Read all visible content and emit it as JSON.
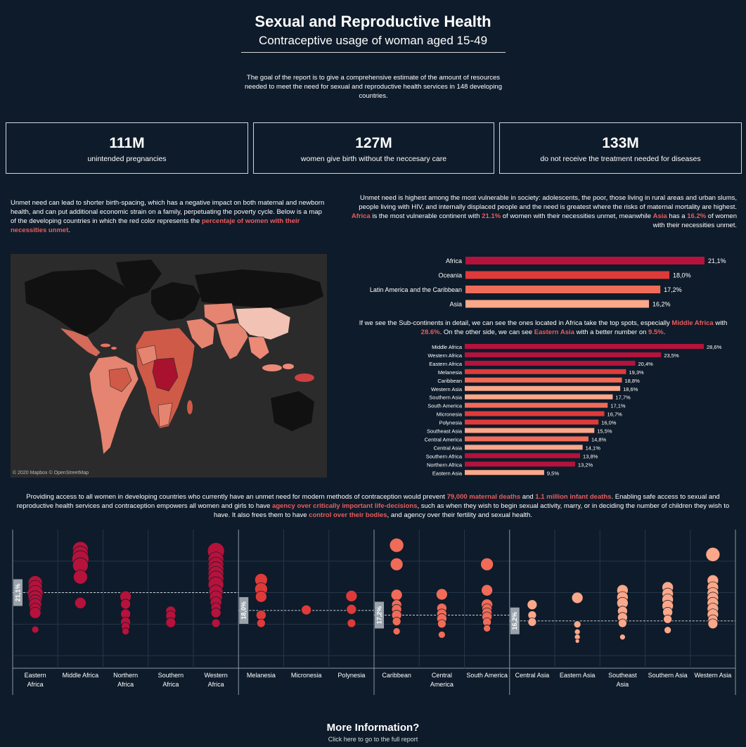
{
  "header": {
    "title": "Sexual and Reproductive Health",
    "subtitle": "Contraceptive usage of woman aged 15-49",
    "intro": "The goal of the report is to give a comprehensive estimate of the amount of resources needed to meet the need for sexual and reproductive health services in 148 developing countries."
  },
  "kpis": [
    {
      "value": "111M",
      "label": "unintended pregnancies"
    },
    {
      "value": "127M",
      "label": "women give birth without the neccesary care"
    },
    {
      "value": "133M",
      "label": "do not receive the treatment needed for diseases"
    }
  ],
  "left_text": {
    "body": "Unmet need can lead to shorter birth-spacing, which has a negative impact on both maternal and newborn health, and can put additional economic strain on a family, perpetuating the poverty cycle. Below is a map of the developing countries in which the red color represents the ",
    "highlight": "percentaje of women with their necessities unmet",
    "end": "."
  },
  "right_text": {
    "p1": "Unmet need is highest among the most vulnerable in society: adolescents, the poor, those living in rural areas and urban slums, people living with HIV, and internally displaced people and the need is greatest where the risks of maternal mortality are highest.",
    "h1": "Africa",
    "t1": " is the most vulnerable continent with ",
    "h2": "21.1%",
    "t2": " of women with their necessities unmet, meanwhile ",
    "h3": "Asia",
    "t3": " has a ",
    "h4": "16.2%",
    "t4": " of women with their necessities unmet."
  },
  "map": {
    "credit": "© 2020 Mapbox © OpenStreetMap"
  },
  "sub_text": {
    "t1": "If we see the Sub-continents in detail, we can see the ones located in Africa take the top spots, especially ",
    "h1": "Middle Africa",
    "t2": " with ",
    "h2": "28.6%",
    "t3": ". On the other side, we can see ",
    "h3": "Eastern Asia",
    "t4": " with a better number on ",
    "h4": "9.5%",
    "t5": "."
  },
  "para2": {
    "t1": "Providing access to all women in developing countries who currently have an unmet need for modern methods of contraception would prevent ",
    "h1": "79,000 maternal deaths",
    "t2": " and ",
    "h2": "1.1 million infant deaths",
    "t3": ". Enabling safe access to sexual and reproductive health services and contraception empowers all women and girls to have ",
    "h3": "agency over critically important life-decisions",
    "t4": ", such as when they wish to begin sexual activity, marry, or in deciding the number of children they wish to have. It also frees them to have ",
    "h4": "control over their bodies",
    "t5": ", and agency over their fertility and sexual health."
  },
  "more_info": {
    "title": "More Information?",
    "link": "Click here to go to the full report"
  },
  "colors": {
    "background": "#0e1b2a",
    "highlight": "#e85d5d",
    "dark_red": "#b5123c",
    "red": "#d63a3a",
    "salmon": "#f2735c",
    "peach": "#fba78a"
  },
  "chart_data": [
    {
      "type": "bar",
      "orientation": "horizontal",
      "categories": [
        "Africa",
        "Oceania",
        "Latin America and the Caribbean",
        "Asia"
      ],
      "values": [
        21.1,
        18.0,
        17.2,
        16.2
      ],
      "value_labels": [
        "21,1%",
        "18,0%",
        "17,2%",
        "16,2%"
      ],
      "colors": [
        "#b5123c",
        "#de3a3a",
        "#f06b58",
        "#fba78a"
      ],
      "xlim": [
        0,
        21.1
      ]
    },
    {
      "type": "bar",
      "orientation": "horizontal",
      "categories": [
        "Middle Africa",
        "Western Africa",
        "Eastern Africa",
        "Melanesia",
        "Caribbean",
        "Western Asia",
        "Southern Asia",
        "South America",
        "Micronesia",
        "Polynesia",
        "Southeast Asia",
        "Central America",
        "Central Asia",
        "Southern Africa",
        "Northern Africa",
        "Eastern Asia"
      ],
      "values": [
        28.6,
        23.5,
        20.4,
        19.3,
        18.8,
        18.6,
        17.7,
        17.1,
        16.7,
        16.0,
        15.5,
        14.8,
        14.1,
        13.8,
        13.2,
        9.5
      ],
      "value_labels": [
        "28,6%",
        "23,5%",
        "20,4%",
        "19,3%",
        "18,8%",
        "18,6%",
        "17,7%",
        "17,1%",
        "16,7%",
        "16,0%",
        "15,5%",
        "14,8%",
        "14,1%",
        "13,8%",
        "13,2%",
        "9,5%"
      ],
      "colors": [
        "#b5123c",
        "#b5123c",
        "#b5123c",
        "#de3a3a",
        "#f06b58",
        "#fba78a",
        "#fba78a",
        "#f06b58",
        "#de3a3a",
        "#de3a3a",
        "#fba78a",
        "#f06b58",
        "#fba78a",
        "#b5123c",
        "#b5123c",
        "#fba78a"
      ],
      "xlim": [
        0,
        28.6
      ]
    },
    {
      "type": "scatter",
      "panels": [
        {
          "name": "Africa",
          "average": 21.1,
          "average_label": "21,1%",
          "color": "#b5123c",
          "groups": [
            {
              "label": "Eastern Africa",
              "points": [
                {
                  "y": 22.8,
                  "r": 10
                },
                {
                  "y": 22.0,
                  "r": 10
                },
                {
                  "y": 21.0,
                  "r": 11
                },
                {
                  "y": 20.2,
                  "r": 10
                },
                {
                  "y": 19.6,
                  "r": 9
                },
                {
                  "y": 19.0,
                  "r": 9
                },
                {
                  "y": 18.3,
                  "r": 8
                },
                {
                  "y": 17.6,
                  "r": 8
                },
                {
                  "y": 14.7,
                  "r": 5
                }
              ]
            },
            {
              "label": "Middle Africa",
              "points": [
                {
                  "y": 28.6,
                  "r": 11
                },
                {
                  "y": 27.8,
                  "r": 11
                },
                {
                  "y": 26.9,
                  "r": 12
                },
                {
                  "y": 25.8,
                  "r": 11
                },
                {
                  "y": 23.8,
                  "r": 10
                },
                {
                  "y": 19.3,
                  "r": 8
                }
              ]
            },
            {
              "label": "Northern Africa",
              "points": [
                {
                  "y": 20.4,
                  "r": 8
                },
                {
                  "y": 19.1,
                  "r": 7
                },
                {
                  "y": 17.4,
                  "r": 7
                },
                {
                  "y": 16.0,
                  "r": 7
                },
                {
                  "y": 15.2,
                  "r": 6
                },
                {
                  "y": 14.4,
                  "r": 5
                }
              ]
            },
            {
              "label": "Southern Africa",
              "points": [
                {
                  "y": 17.9,
                  "r": 7
                },
                {
                  "y": 17.1,
                  "r": 7
                },
                {
                  "y": 15.9,
                  "r": 7
                }
              ]
            },
            {
              "label": "Western Africa",
              "points": [
                {
                  "y": 28.3,
                  "r": 12
                },
                {
                  "y": 26.8,
                  "r": 11
                },
                {
                  "y": 25.9,
                  "r": 11
                },
                {
                  "y": 25.1,
                  "r": 11
                },
                {
                  "y": 24.3,
                  "r": 11
                },
                {
                  "y": 23.5,
                  "r": 11
                },
                {
                  "y": 22.5,
                  "r": 11
                },
                {
                  "y": 21.2,
                  "r": 10
                },
                {
                  "y": 20.3,
                  "r": 9
                },
                {
                  "y": 19.4,
                  "r": 8
                },
                {
                  "y": 18.5,
                  "r": 7
                },
                {
                  "y": 17.6,
                  "r": 7
                },
                {
                  "y": 15.8,
                  "r": 6
                }
              ]
            }
          ]
        },
        {
          "name": "Oceania",
          "average": 18.0,
          "average_label": "18,0%",
          "color": "#de3a3a",
          "groups": [
            {
              "label": "Melanesia",
              "points": [
                {
                  "y": 23.3,
                  "r": 9
                },
                {
                  "y": 21.7,
                  "r": 9
                },
                {
                  "y": 20.4,
                  "r": 8
                },
                {
                  "y": 17.2,
                  "r": 7
                },
                {
                  "y": 15.8,
                  "r": 6
                }
              ]
            },
            {
              "label": "Micronesia",
              "points": [
                {
                  "y": 18.1,
                  "r": 7
                }
              ]
            },
            {
              "label": "Polynesia",
              "points": [
                {
                  "y": 20.5,
                  "r": 8
                },
                {
                  "y": 18.2,
                  "r": 7
                },
                {
                  "y": 15.8,
                  "r": 6
                }
              ]
            }
          ]
        },
        {
          "name": "Latin America and the Caribbean",
          "average": 17.2,
          "average_label": "17,2%",
          "color": "#f06b58",
          "groups": [
            {
              "label": "Caribbean",
              "points": [
                {
                  "y": 29.3,
                  "r": 10
                },
                {
                  "y": 26.0,
                  "r": 9
                },
                {
                  "y": 20.7,
                  "r": 8
                },
                {
                  "y": 19.0,
                  "r": 7
                },
                {
                  "y": 18.2,
                  "r": 7
                },
                {
                  "y": 17.2,
                  "r": 7
                },
                {
                  "y": 16.1,
                  "r": 6
                },
                {
                  "y": 14.4,
                  "r": 5
                }
              ]
            },
            {
              "label": "Central America",
              "points": [
                {
                  "y": 20.8,
                  "r": 8
                },
                {
                  "y": 18.4,
                  "r": 7
                },
                {
                  "y": 17.4,
                  "r": 7
                },
                {
                  "y": 16.6,
                  "r": 7
                },
                {
                  "y": 15.7,
                  "r": 6
                },
                {
                  "y": 13.8,
                  "r": 5
                }
              ]
            },
            {
              "label": "South America",
              "points": [
                {
                  "y": 26.0,
                  "r": 9
                },
                {
                  "y": 21.5,
                  "r": 8
                },
                {
                  "y": 19.0,
                  "r": 8
                },
                {
                  "y": 18.3,
                  "r": 7
                },
                {
                  "y": 17.6,
                  "r": 7
                },
                {
                  "y": 16.9,
                  "r": 7
                },
                {
                  "y": 16.0,
                  "r": 6
                },
                {
                  "y": 14.9,
                  "r": 5
                }
              ]
            }
          ]
        },
        {
          "name": "Asia",
          "average": 16.2,
          "average_label": "16,2%",
          "color": "#fba78a",
          "groups": [
            {
              "label": "Central Asia",
              "points": [
                {
                  "y": 19.0,
                  "r": 7
                },
                {
                  "y": 17.2,
                  "r": 6
                },
                {
                  "y": 16.0,
                  "r": 6
                }
              ]
            },
            {
              "label": "Eastern Asia",
              "points": [
                {
                  "y": 20.2,
                  "r": 8
                },
                {
                  "y": 15.6,
                  "r": 5
                },
                {
                  "y": 14.3,
                  "r": 4
                },
                {
                  "y": 13.4,
                  "r": 4
                },
                {
                  "y": 12.7,
                  "r": 3
                }
              ]
            },
            {
              "label": "Southeast Asia",
              "points": [
                {
                  "y": 21.5,
                  "r": 8
                },
                {
                  "y": 20.3,
                  "r": 8
                },
                {
                  "y": 19.3,
                  "r": 8
                },
                {
                  "y": 17.9,
                  "r": 7
                },
                {
                  "y": 16.8,
                  "r": 7
                },
                {
                  "y": 15.8,
                  "r": 6
                },
                {
                  "y": 13.4,
                  "r": 4
                }
              ]
            },
            {
              "label": "Southern Asia",
              "points": [
                {
                  "y": 22.0,
                  "r": 8
                },
                {
                  "y": 20.9,
                  "r": 8
                },
                {
                  "y": 19.9,
                  "r": 8
                },
                {
                  "y": 18.8,
                  "r": 8
                },
                {
                  "y": 17.7,
                  "r": 7
                },
                {
                  "y": 16.5,
                  "r": 6
                },
                {
                  "y": 14.6,
                  "r": 5
                }
              ]
            },
            {
              "label": "Western Asia",
              "points": [
                {
                  "y": 27.7,
                  "r": 10
                },
                {
                  "y": 23.2,
                  "r": 8
                },
                {
                  "y": 22.0,
                  "r": 8
                },
                {
                  "y": 21.0,
                  "r": 8
                },
                {
                  "y": 20.2,
                  "r": 8
                },
                {
                  "y": 19.3,
                  "r": 8
                },
                {
                  "y": 18.3,
                  "r": 8
                },
                {
                  "y": 17.3,
                  "r": 8
                },
                {
                  "y": 16.4,
                  "r": 7
                },
                {
                  "y": 15.7,
                  "r": 7
                }
              ]
            }
          ]
        }
      ],
      "ylim": [
        8,
        32
      ]
    }
  ]
}
